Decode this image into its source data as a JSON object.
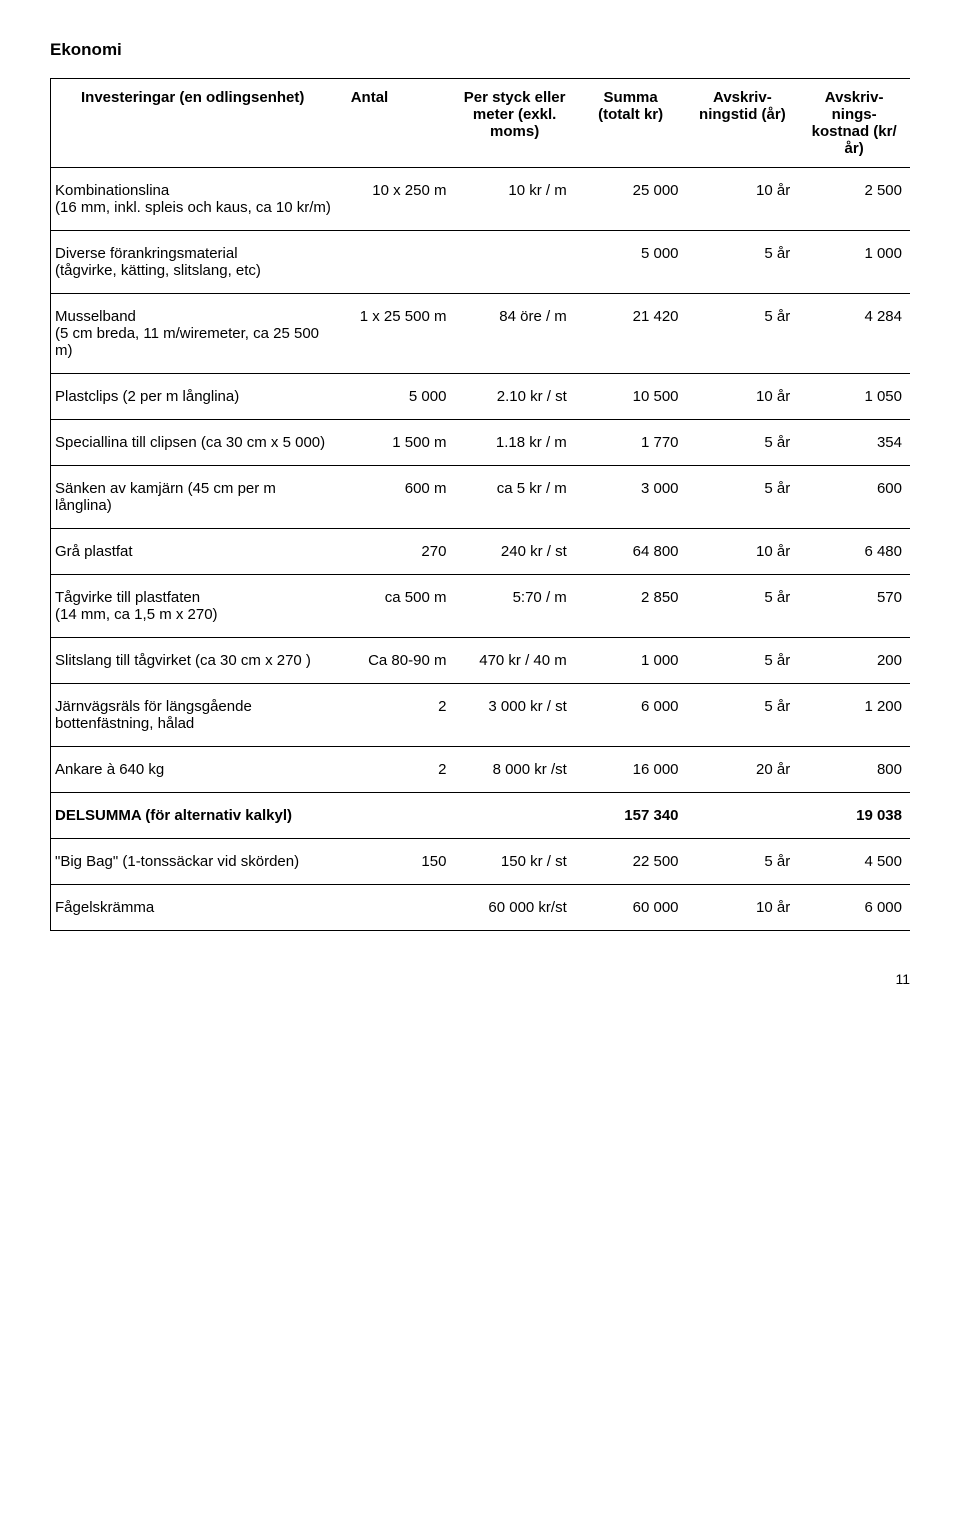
{
  "title": "Ekonomi",
  "page_number": "11",
  "headers": {
    "col1": "Investeringar (en odlingsenhet)",
    "col2": "Antal",
    "col3": "Per styck eller meter (exkl. moms)",
    "col4": "Summa (totalt kr)",
    "col5": "Avskriv-ningstid (år)",
    "col6": "Avskriv-nings-kostnad (kr/år)"
  },
  "rows": [
    {
      "desc": "Kombinationslina\n(16 mm, inkl. spleis och kaus, ca 10 kr/m)",
      "antal": "10 x 250 m",
      "per": "10 kr / m",
      "sum": "25 000",
      "tid": "10 år",
      "avs": "2 500"
    },
    {
      "desc": "Diverse förankringsmaterial\n(tågvirke, kätting, slitslang, etc)",
      "antal": "",
      "per": "",
      "sum": "5 000",
      "tid": "5 år",
      "avs": "1 000"
    },
    {
      "desc": "Musselband\n(5 cm breda, 11 m/wiremeter, ca 25 500 m)",
      "antal": "1 x 25 500 m",
      "per": "84 öre / m",
      "sum": "21 420",
      "tid": "5 år",
      "avs": "4 284"
    },
    {
      "desc": "Plastclips (2 per m långlina)",
      "antal": "5 000",
      "per": "2.10 kr / st",
      "sum": "10 500",
      "tid": "10 år",
      "avs": "1 050"
    },
    {
      "desc": "Speciallina till clipsen (ca 30 cm x 5 000)",
      "antal": "1 500 m",
      "per": "1.18 kr / m",
      "sum": "1 770",
      "tid": "5 år",
      "avs": "354"
    },
    {
      "desc": "Sänken av kamjärn (45 cm per m långlina)",
      "antal": "600 m",
      "per": "ca 5 kr / m",
      "sum": "3 000",
      "tid": "5 år",
      "avs": "600"
    },
    {
      "desc": "Grå plastfat",
      "antal": "270",
      "per": "240 kr / st",
      "sum": "64 800",
      "tid": "10 år",
      "avs": "6 480"
    },
    {
      "desc": "Tågvirke till plastfaten\n(14 mm, ca 1,5 m x 270)",
      "antal": "ca 500 m",
      "per": "5:70 / m",
      "sum": "2 850",
      "tid": "5 år",
      "avs": "570"
    },
    {
      "desc": "Slitslang till tågvirket (ca 30 cm x 270 )",
      "antal": "Ca 80-90 m",
      "per": "470 kr / 40 m",
      "sum": "1 000",
      "tid": "5 år",
      "avs": "200"
    },
    {
      "desc": "Järnvägsräls för längsgående bottenfästning, hålad",
      "antal": "2",
      "per": "3 000 kr / st",
      "sum": "6 000",
      "tid": "5 år",
      "avs": "1 200"
    },
    {
      "desc": "Ankare à 640 kg",
      "antal": "2",
      "per": "8 000 kr /st",
      "sum": "16 000",
      "tid": "20 år",
      "avs": "800"
    }
  ],
  "subtotal": {
    "label": "DELSUMMA (för alternativ kalkyl)",
    "sum": "157 340",
    "avs": "19 038"
  },
  "after_rows": [
    {
      "desc": "\"Big Bag\" (1-tonssäckar vid skörden)",
      "antal": "150",
      "per": "150 kr / st",
      "sum": "22 500",
      "tid": "5 år",
      "avs": "4 500"
    },
    {
      "desc": "Fågelskrämma",
      "antal": "",
      "per": "60 000 kr/st",
      "sum": "60 000",
      "tid": "10 år",
      "avs": "6 000"
    }
  ]
}
